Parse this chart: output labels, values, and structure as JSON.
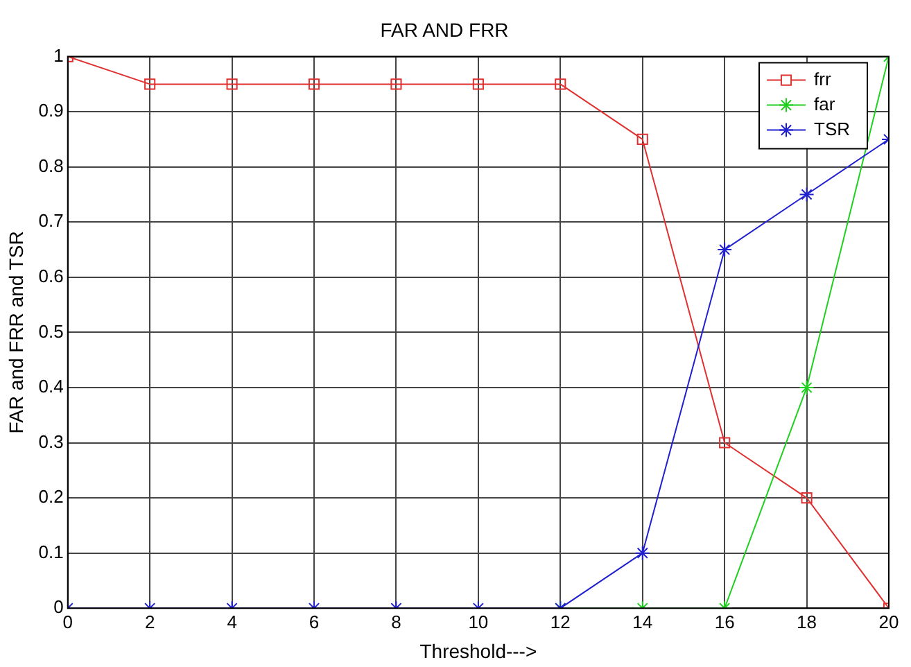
{
  "chart_data": {
    "type": "line",
    "title": "FAR AND FRR",
    "xlabel": "Threshold--->",
    "ylabel": "FAR and FRR and TSR",
    "x": [
      0,
      2,
      4,
      6,
      8,
      10,
      12,
      14,
      16,
      18,
      20
    ],
    "series": [
      {
        "name": "frr",
        "color": "#e03030",
        "marker": "square",
        "values": [
          1,
          0.95,
          0.95,
          0.95,
          0.95,
          0.95,
          0.95,
          0.85,
          0.3,
          0.2,
          0
        ]
      },
      {
        "name": "far",
        "color": "#20d020",
        "marker": "cross",
        "values": [
          null,
          null,
          null,
          null,
          null,
          null,
          0,
          0,
          0,
          0.4,
          1
        ]
      },
      {
        "name": "TSR",
        "color": "#2020d0",
        "marker": "cross",
        "values": [
          0,
          0,
          0,
          0,
          0,
          0,
          0,
          0.1,
          0.65,
          0.75,
          0.85
        ]
      }
    ],
    "xlim": [
      0,
      20
    ],
    "xticks": [
      0,
      2,
      4,
      6,
      8,
      10,
      12,
      14,
      16,
      18,
      20
    ],
    "ylim": [
      0,
      1
    ],
    "yticks": [
      0,
      0.1,
      0.2,
      0.3,
      0.4,
      0.5,
      0.6,
      0.7,
      0.8,
      0.9,
      1
    ],
    "grid": true,
    "legend": "top right",
    "line_style": "solid"
  }
}
